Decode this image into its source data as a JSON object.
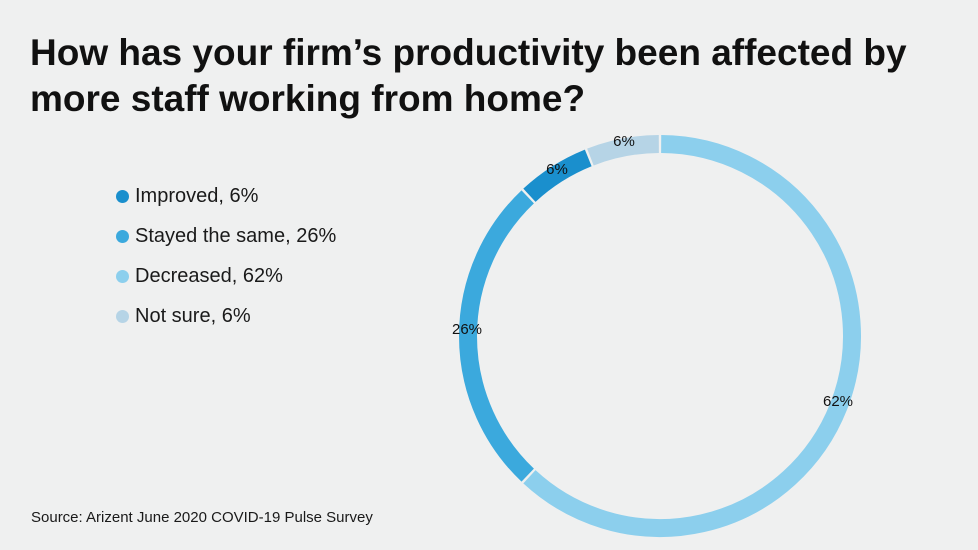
{
  "chart_data": {
    "type": "pie",
    "style": "donut",
    "title": "How has your firm’s productivity been affected by more staff working from home?",
    "categories": [
      "Improved",
      "Stayed the same",
      "Decreased",
      "Not sure"
    ],
    "values": [
      6,
      26,
      62,
      6
    ],
    "value_labels": [
      "6%",
      "26%",
      "62%",
      "6%"
    ],
    "colors": [
      "#1a8fcd",
      "#3ba9dd",
      "#8ccfed",
      "#b6d4e6"
    ],
    "legend": {
      "position": "left",
      "entries": [
        "Improved, 6%",
        "Stayed the same, 26%",
        "Decreased, 62%",
        "Not sure, 6%"
      ]
    },
    "source": "Source: Arizent June 2020 COVID-19 Pulse Survey"
  }
}
